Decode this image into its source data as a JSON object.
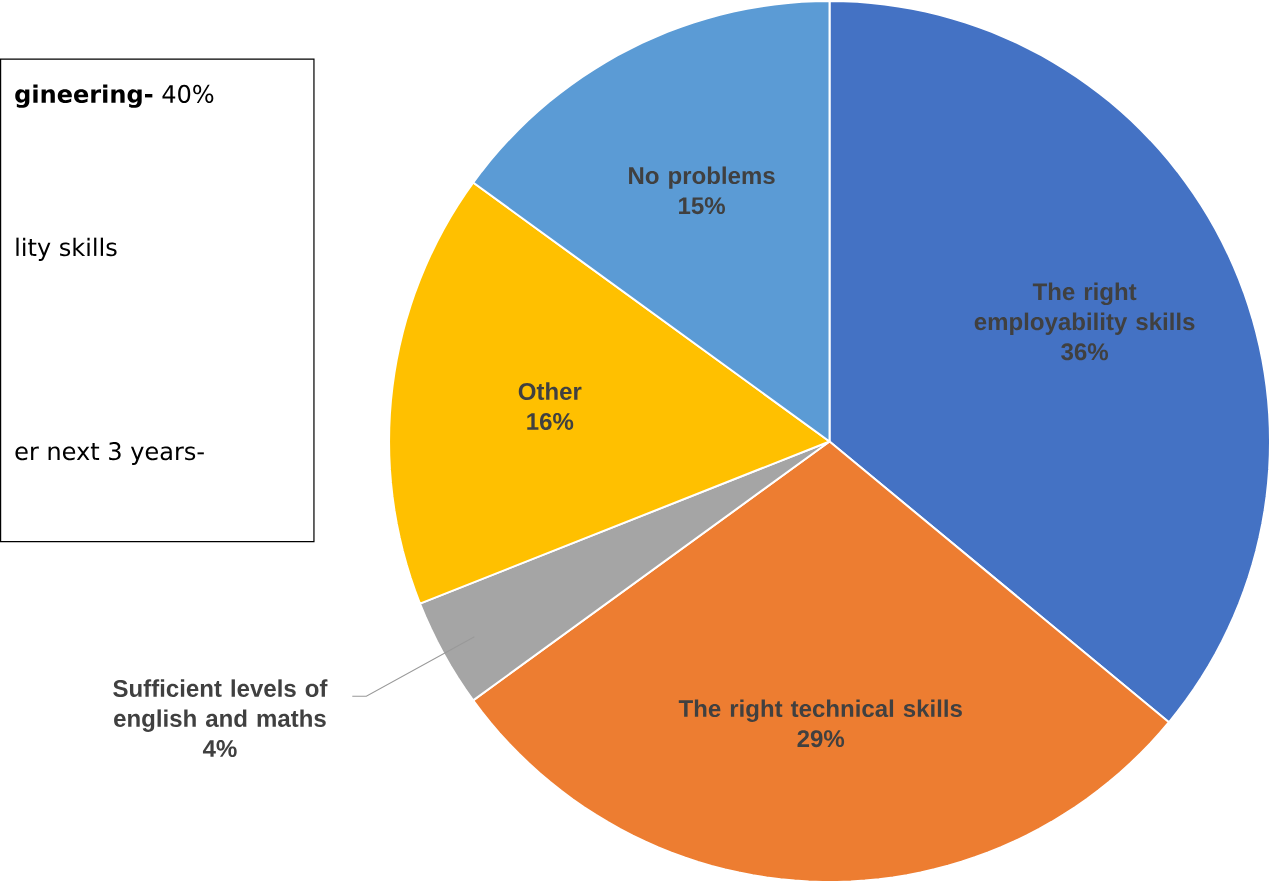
{
  "chart_data": {
    "type": "pie",
    "categories": [
      "The right employability skills",
      "The right technical skills",
      "Sufficient levels of english and maths",
      "Other",
      "No problems"
    ],
    "values": [
      36,
      29,
      4,
      16,
      15
    ],
    "value_labels": [
      "36%",
      "29%",
      "4%",
      "16%",
      "15%"
    ],
    "colors": [
      "#4472c4",
      "#ed7d31",
      "#a5a5a5",
      "#ffc000",
      "#5b9bd5"
    ],
    "legend": false,
    "annotations": [
      "**gineering-** 40%",
      "lity skills",
      "er next 3 years-"
    ]
  }
}
